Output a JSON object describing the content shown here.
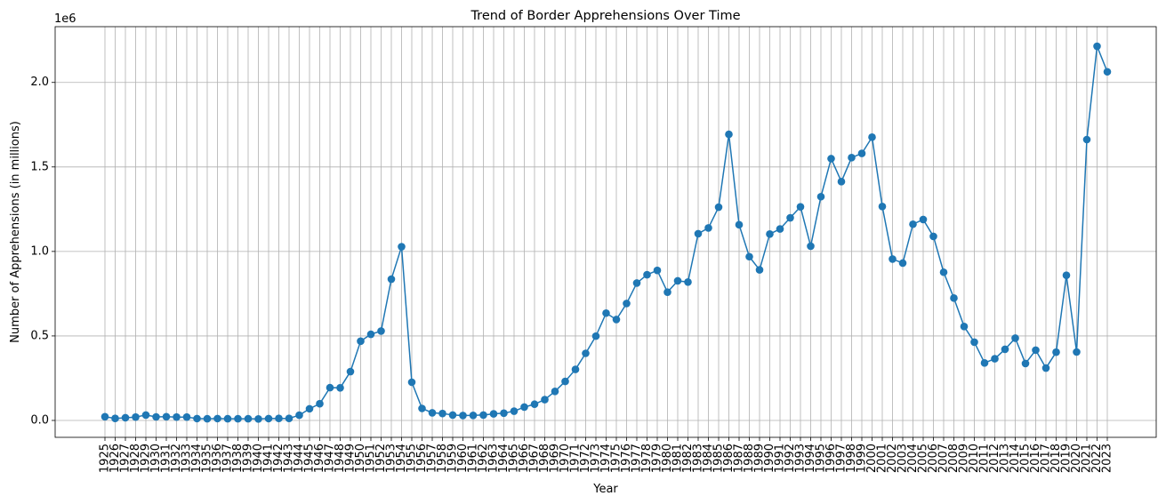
{
  "chart_data": {
    "type": "line",
    "title": "Trend of Border Apprehensions Over Time",
    "xlabel": "Year",
    "ylabel": "Number of Apprehensions (in millions)",
    "y_offset_label": "1e6",
    "ylim": [
      -100000,
      2330000
    ],
    "y_ticks": [
      0,
      500000,
      1000000,
      1500000,
      2000000
    ],
    "y_tick_labels": [
      "0.0",
      "0.5",
      "1.0",
      "1.5",
      "2.0"
    ],
    "grid": true,
    "marker": "circle",
    "line_color": "#1f77b4",
    "x": [
      "1925",
      "1926",
      "1927",
      "1928",
      "1929",
      "1930",
      "1931",
      "1932",
      "1933",
      "1934",
      "1935",
      "1936",
      "1937",
      "1938",
      "1939",
      "1940",
      "1941",
      "1942",
      "1943",
      "1944",
      "1945",
      "1946",
      "1947",
      "1948",
      "1949",
      "1950",
      "1951",
      "1952",
      "1953",
      "1954",
      "1955",
      "1956",
      "1957",
      "1958",
      "1959",
      "1960",
      "1961",
      "1962",
      "1963",
      "1964",
      "1965",
      "1966",
      "1967",
      "1968",
      "1969",
      "1970",
      "1971",
      "1972",
      "1973",
      "1974",
      "1975",
      "1976",
      "1977",
      "1978",
      "1979",
      "1980",
      "1981",
      "1982",
      "1983",
      "1984",
      "1985",
      "1986",
      "1987",
      "1988",
      "1989",
      "1990",
      "1991",
      "1992",
      "1993",
      "1994",
      "1995",
      "1996",
      "1997",
      "1998",
      "1999",
      "2000",
      "2001",
      "2002",
      "2003",
      "2004",
      "2005",
      "2006",
      "2007",
      "2008",
      "2009",
      "2010",
      "2011",
      "2012",
      "2013",
      "2014",
      "2015",
      "2016",
      "2017",
      "2018",
      "2019",
      "2020",
      "2021",
      "2022",
      "2023"
    ],
    "values": [
      22000,
      12000,
      16000,
      20000,
      32000,
      21000,
      22000,
      20000,
      20000,
      11000,
      10000,
      11000,
      10000,
      10000,
      10000,
      9000,
      11000,
      12000,
      12000,
      31000,
      69000,
      99000,
      194000,
      193000,
      289000,
      469000,
      510000,
      529000,
      836000,
      1028000,
      226000,
      71000,
      45000,
      41000,
      32000,
      29000,
      30000,
      32000,
      39000,
      43000,
      55000,
      79000,
      96000,
      123000,
      172000,
      231000,
      302000,
      397000,
      499000,
      635000,
      597000,
      692000,
      813000,
      862000,
      888000,
      759000,
      826000,
      819000,
      1105000,
      1139000,
      1262000,
      1693000,
      1158000,
      969000,
      891000,
      1103000,
      1133000,
      1199000,
      1264000,
      1031000,
      1324000,
      1549000,
      1413000,
      1555000,
      1580000,
      1676000,
      1266000,
      955000,
      931000,
      1161000,
      1189000,
      1089000,
      877000,
      724000,
      556000,
      463000,
      340000,
      365000,
      421000,
      487000,
      337000,
      416000,
      310000,
      404000,
      859000,
      405000,
      1662000,
      2214000,
      2063000
    ]
  }
}
